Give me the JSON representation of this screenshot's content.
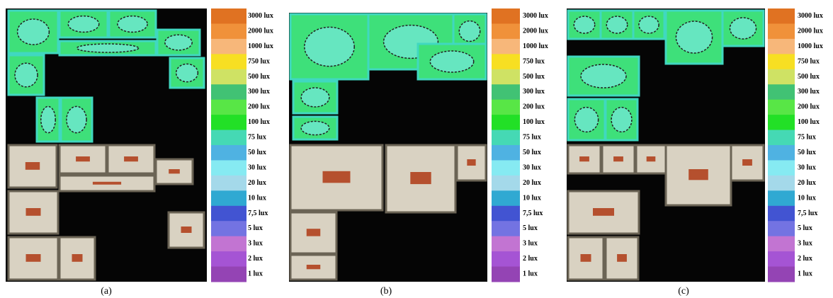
{
  "panels": [
    {
      "caption": "(a)",
      "legend": [
        {
          "label": "3000 lux",
          "color": "#e07222"
        },
        {
          "label": "2000 lux",
          "color": "#f0913a"
        },
        {
          "label": "1000 lux",
          "color": "#f7b77a"
        },
        {
          "label": "750 lux",
          "color": "#f7df22"
        },
        {
          "label": "500 lux",
          "color": "#cfe264"
        },
        {
          "label": "300 lux",
          "color": "#41c274"
        },
        {
          "label": "200 lux",
          "color": "#58e646"
        },
        {
          "label": "100 lux",
          "color": "#22e026"
        },
        {
          "label": "75 lux",
          "color": "#45d9b4"
        },
        {
          "label": "50 lux",
          "color": "#4fb2e2"
        },
        {
          "label": "30 lux",
          "color": "#86eaf2"
        },
        {
          "label": "20 lux",
          "color": "#a4d9ea"
        },
        {
          "label": "10 lux",
          "color": "#30a9d2"
        },
        {
          "label": "7,5 lux",
          "color": "#4254d2"
        },
        {
          "label": "5 lux",
          "color": "#7373e2"
        },
        {
          "label": "3 lux",
          "color": "#c274d2"
        },
        {
          "label": "2 lux",
          "color": "#a554d4"
        },
        {
          "label": "1 lux",
          "color": "#9444b4"
        }
      ]
    },
    {
      "caption": "(b)",
      "legend": [
        {
          "label": "3000 lux",
          "color": "#e07222"
        },
        {
          "label": "2000 lux",
          "color": "#f0913a"
        },
        {
          "label": "1000 lux",
          "color": "#f7b77a"
        },
        {
          "label": "750 lux",
          "color": "#f7df22"
        },
        {
          "label": "500 lux",
          "color": "#cfe264"
        },
        {
          "label": "300 lux",
          "color": "#41c274"
        },
        {
          "label": "200 lux",
          "color": "#58e646"
        },
        {
          "label": "100 lux",
          "color": "#22e026"
        },
        {
          "label": "75 lux",
          "color": "#45d9b4"
        },
        {
          "label": "50 lux",
          "color": "#4fb2e2"
        },
        {
          "label": "30 lux",
          "color": "#86eaf2"
        },
        {
          "label": "20 lux",
          "color": "#a4d9ea"
        },
        {
          "label": "10 lux",
          "color": "#30a9d2"
        },
        {
          "label": "7,5 lux",
          "color": "#4254d2"
        },
        {
          "label": "5 lux",
          "color": "#7373e2"
        },
        {
          "label": "3 lux",
          "color": "#c274d2"
        },
        {
          "label": "2 lux",
          "color": "#a554d4"
        },
        {
          "label": "1 lux",
          "color": "#9444b4"
        }
      ]
    },
    {
      "caption": "(c)",
      "legend": [
        {
          "label": "3000 lux",
          "color": "#e07222"
        },
        {
          "label": "2000 lux",
          "color": "#f0913a"
        },
        {
          "label": "1000 lux",
          "color": "#f7b77a"
        },
        {
          "label": "750 lux",
          "color": "#f7df22"
        },
        {
          "label": "500 lux",
          "color": "#cfe264"
        },
        {
          "label": "300 lux",
          "color": "#41c274"
        },
        {
          "label": "200 lux",
          "color": "#58e646"
        },
        {
          "label": "100 lux",
          "color": "#22e026"
        },
        {
          "label": "75 lux",
          "color": "#45d9b4"
        },
        {
          "label": "50 lux",
          "color": "#4fb2e2"
        },
        {
          "label": "30 lux",
          "color": "#86eaf2"
        },
        {
          "label": "20 lux",
          "color": "#a4d9ea"
        },
        {
          "label": "10 lux",
          "color": "#30a9d2"
        },
        {
          "label": "7,5 lux",
          "color": "#4254d2"
        },
        {
          "label": "5 lux",
          "color": "#7373e2"
        },
        {
          "label": "3 lux",
          "color": "#c274d2"
        },
        {
          "label": "2 lux",
          "color": "#a554d4"
        },
        {
          "label": "1 lux",
          "color": "#9444b4"
        }
      ]
    }
  ]
}
